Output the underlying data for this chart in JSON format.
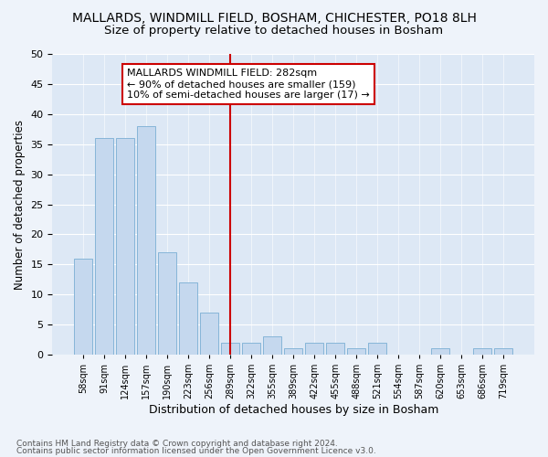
{
  "title": "MALLARDS, WINDMILL FIELD, BOSHAM, CHICHESTER, PO18 8LH",
  "subtitle": "Size of property relative to detached houses in Bosham",
  "xlabel": "Distribution of detached houses by size in Bosham",
  "ylabel": "Number of detached properties",
  "categories": [
    "58sqm",
    "91sqm",
    "124sqm",
    "157sqm",
    "190sqm",
    "223sqm",
    "256sqm",
    "289sqm",
    "322sqm",
    "355sqm",
    "389sqm",
    "422sqm",
    "455sqm",
    "488sqm",
    "521sqm",
    "554sqm",
    "587sqm",
    "620sqm",
    "653sqm",
    "686sqm",
    "719sqm"
  ],
  "values": [
    16,
    36,
    36,
    38,
    17,
    12,
    7,
    2,
    2,
    3,
    1,
    2,
    2,
    1,
    2,
    0,
    0,
    1,
    0,
    1,
    1
  ],
  "bar_color": "#c5d8ee",
  "bar_edge_color": "#7aaed4",
  "vline_x": 7.0,
  "vline_color": "#cc0000",
  "annotation_title": "MALLARDS WINDMILL FIELD: 282sqm",
  "annotation_line1": "← 90% of detached houses are smaller (159)",
  "annotation_line2": "10% of semi-detached houses are larger (17) →",
  "annotation_box_color": "#cc0000",
  "ylim": [
    0,
    50
  ],
  "yticks": [
    0,
    5,
    10,
    15,
    20,
    25,
    30,
    35,
    40,
    45,
    50
  ],
  "footnote1": "Contains HM Land Registry data © Crown copyright and database right 2024.",
  "footnote2": "Contains public sector information licensed under the Open Government Licence v3.0.",
  "background_color": "#eef3fa",
  "plot_bg_color": "#dde8f5",
  "title_fontsize": 10,
  "subtitle_fontsize": 9.5,
  "xlabel_fontsize": 9,
  "ylabel_fontsize": 8.5,
  "annotation_fontsize": 8
}
